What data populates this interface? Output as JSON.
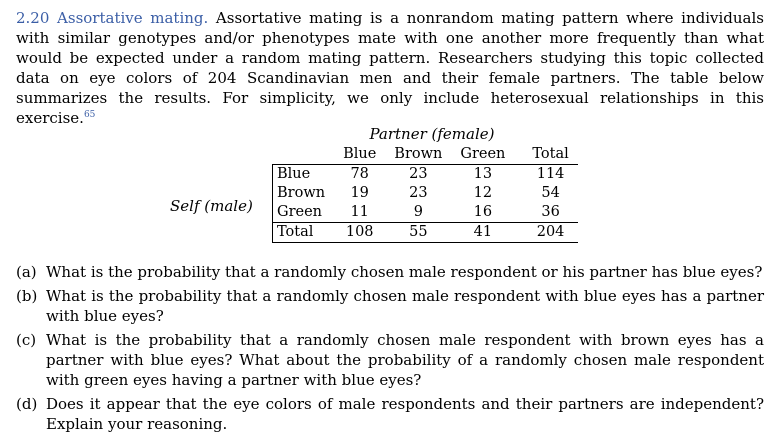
{
  "exercise": {
    "number": "2.20",
    "title": "Assortative mating.",
    "text": "Assortative mating is a nonrandom mating pattern where individuals with similar genotypes and/or phenotypes mate with one another more frequently than what would be expected under a random mating pattern. Researchers studying this topic collected data on eye colors of 204 Scandinavian men and their female partners. The table below summarizes the results. For simplicity, we only include heterosexual relationships in this exercise.",
    "footnote": "65"
  },
  "table": {
    "caption": "Partner (female)",
    "row_group_label": "Self (male)",
    "columns": [
      "Blue",
      "Brown",
      "Green",
      "Total"
    ],
    "rows": [
      {
        "label": "Blue",
        "values": [
          "78",
          "23",
          "13",
          "114"
        ]
      },
      {
        "label": "Brown",
        "values": [
          "19",
          "23",
          "12",
          "54"
        ]
      },
      {
        "label": "Green",
        "values": [
          "11",
          "9",
          "16",
          "36"
        ]
      },
      {
        "label": "Total",
        "values": [
          "108",
          "55",
          "41",
          "204"
        ]
      }
    ]
  },
  "questions": [
    {
      "label": "(a)",
      "text": "What is the probability that a randomly chosen male respondent or his partner has blue eyes?"
    },
    {
      "label": "(b)",
      "text": "What is the probability that a randomly chosen male respondent with blue eyes has a partner with blue eyes?"
    },
    {
      "label": "(c)",
      "text": "What is the probability that a randomly chosen male respondent with brown eyes has a partner with blue eyes? What about the probability of a randomly chosen male respondent with green eyes having a partner with blue eyes?"
    },
    {
      "label": "(d)",
      "text": "Does it appear that the eye colors of male respondents and their partners are independent? Explain your reasoning."
    }
  ]
}
